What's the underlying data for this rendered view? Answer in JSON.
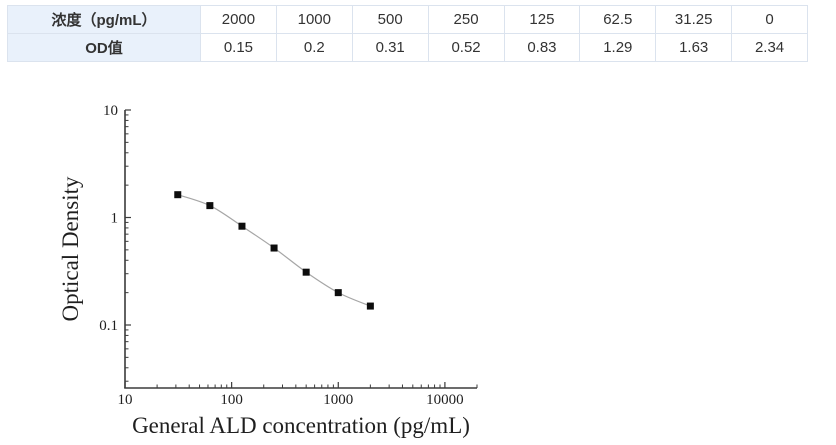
{
  "table": {
    "rows": [
      {
        "header": "浓度（pg/mL）",
        "cells": [
          "2000",
          "1000",
          "500",
          "250",
          "125",
          "62.5",
          "31.25",
          "0"
        ]
      },
      {
        "header": "OD值",
        "cells": [
          "0.15",
          "0.2",
          "0.31",
          "0.52",
          "0.83",
          "1.29",
          "1.63",
          "2.34"
        ]
      }
    ]
  },
  "chart_data": {
    "type": "scatter",
    "x": [
      31.25,
      62.5,
      125,
      250,
      500,
      1000,
      2000
    ],
    "y": [
      1.63,
      1.29,
      0.83,
      0.52,
      0.31,
      0.2,
      0.15
    ],
    "xlabel": "General ALD concentration (pg/mL)",
    "ylabel": "Optical Density",
    "x_scale": "log",
    "y_scale": "log",
    "xlim": [
      10,
      20000
    ],
    "ylim": [
      0.026,
      10
    ],
    "x_ticks": [
      10,
      100,
      1000,
      10000
    ],
    "y_ticks": [
      0.1,
      1,
      10
    ],
    "grid": false,
    "legend": "none",
    "marker": "square",
    "marker_color": "#0d0d0d",
    "line_color": "#a6a6a6",
    "axis_color": "#3b3b3b"
  },
  "colors": {
    "table_header_bg": "#e9f1fb",
    "table_border": "#dbe3ee",
    "table_text": "#333333"
  }
}
